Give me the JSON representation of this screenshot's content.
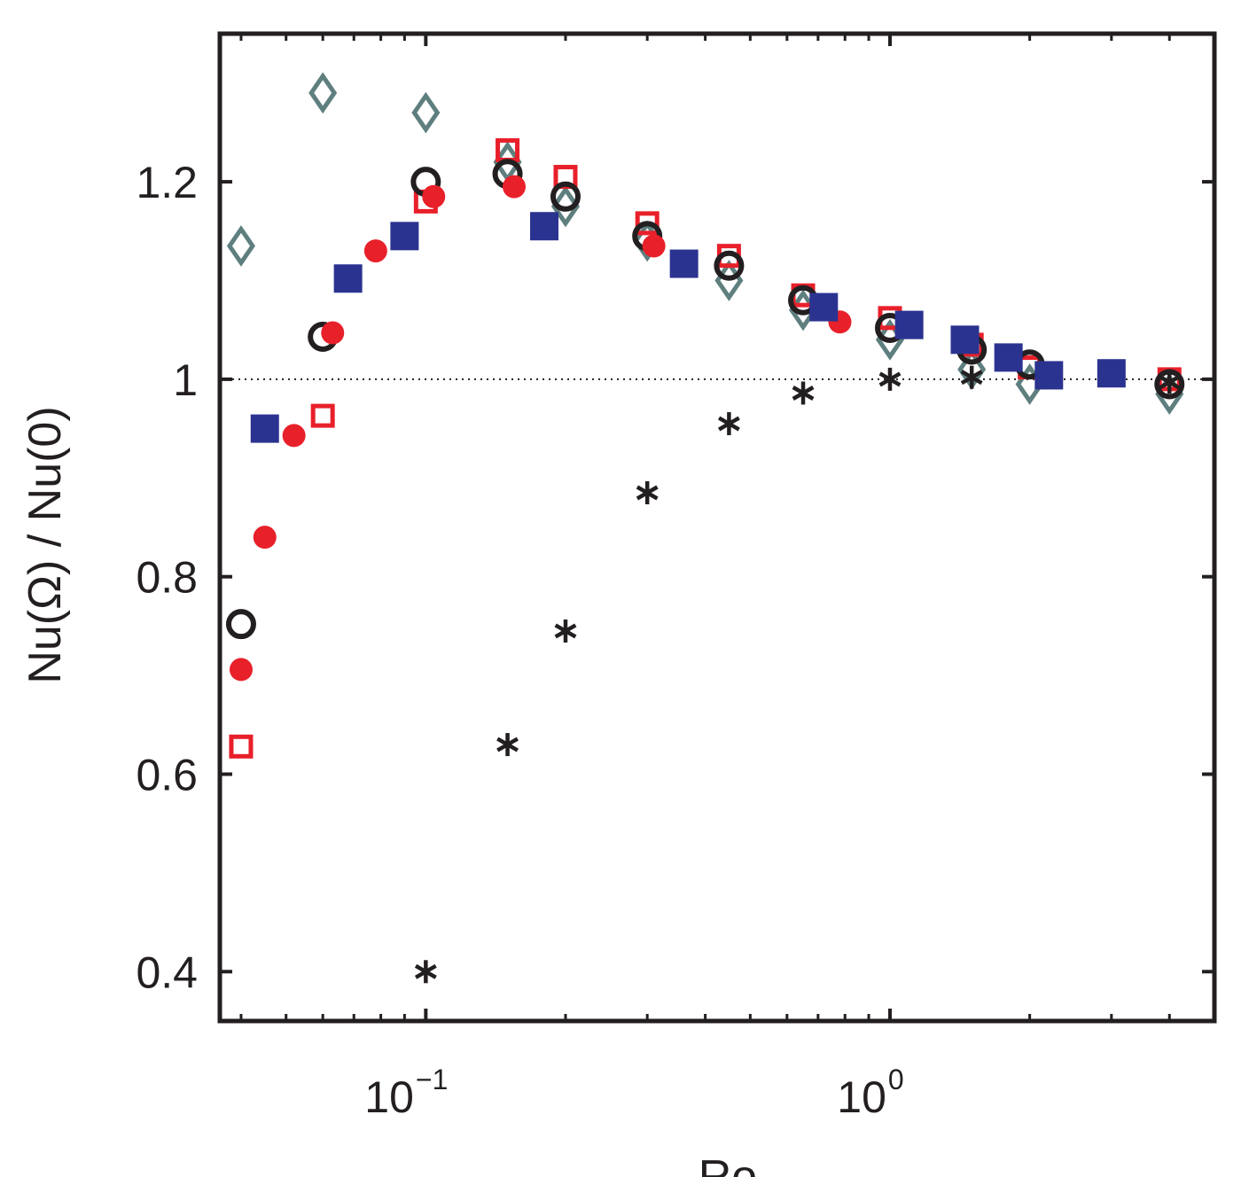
{
  "chart_data": {
    "type": "scatter",
    "xlabel": "Ro",
    "ylabel": "Nu(Ω) / Nu(0)",
    "xscale": "log",
    "xlim": [
      0.036,
      5.0
    ],
    "ylim": [
      0.35,
      1.35
    ],
    "reference_line_y": 1,
    "x_ticks": [
      {
        "value": 0.1,
        "base": "10",
        "exp": "−1"
      },
      {
        "value": 1,
        "base": "10",
        "exp": "0"
      }
    ],
    "y_ticks": [
      {
        "value": 0.4,
        "label": "0.4"
      },
      {
        "value": 0.6,
        "label": "0.6"
      },
      {
        "value": 0.8,
        "label": "0.8"
      },
      {
        "value": 1.0,
        "label": "1"
      },
      {
        "value": 1.2,
        "label": "1.2"
      }
    ],
    "series": [
      {
        "marker": "diamond-open",
        "color": "#5f7f7f",
        "points": [
          [
            0.04,
            1.135
          ],
          [
            0.06,
            1.29
          ],
          [
            0.1,
            1.27
          ],
          [
            0.15,
            1.22
          ],
          [
            0.2,
            1.175
          ],
          [
            0.3,
            1.14
          ],
          [
            0.45,
            1.1
          ],
          [
            0.65,
            1.07
          ],
          [
            1.0,
            1.04
          ],
          [
            1.5,
            1.01
          ],
          [
            2.0,
            0.995
          ],
          [
            4.0,
            0.985
          ]
        ]
      },
      {
        "marker": "square-open",
        "color": "#e8202a",
        "points": [
          [
            0.04,
            0.628
          ],
          [
            0.06,
            0.963
          ],
          [
            0.1,
            1.18
          ],
          [
            0.15,
            1.232
          ],
          [
            0.2,
            1.205
          ],
          [
            0.3,
            1.158
          ],
          [
            0.45,
            1.125
          ],
          [
            0.65,
            1.085
          ],
          [
            1.0,
            1.062
          ],
          [
            1.5,
            1.035
          ],
          [
            2.0,
            1.012
          ],
          [
            4.0,
            1.0
          ]
        ]
      },
      {
        "marker": "circle-open",
        "color": "#231f20",
        "points": [
          [
            0.04,
            0.752
          ],
          [
            0.06,
            1.043
          ],
          [
            0.1,
            1.2
          ],
          [
            0.15,
            1.208
          ],
          [
            0.2,
            1.185
          ],
          [
            0.3,
            1.145
          ],
          [
            0.45,
            1.115
          ],
          [
            0.65,
            1.08
          ],
          [
            1.0,
            1.052
          ],
          [
            1.5,
            1.03
          ],
          [
            2.0,
            1.015
          ],
          [
            4.0,
            0.995
          ]
        ]
      },
      {
        "marker": "circle-filled",
        "color": "#e8202a",
        "points": [
          [
            0.04,
            0.706
          ],
          [
            0.045,
            0.84
          ],
          [
            0.052,
            0.943
          ],
          [
            0.063,
            1.047
          ],
          [
            0.078,
            1.13
          ],
          [
            0.104,
            1.185
          ],
          [
            0.155,
            1.195
          ],
          [
            0.31,
            1.135
          ],
          [
            0.78,
            1.058
          ]
        ]
      },
      {
        "marker": "square-filled",
        "color": "#2b3390",
        "points": [
          [
            0.045,
            0.95
          ],
          [
            0.068,
            1.102
          ],
          [
            0.09,
            1.145
          ],
          [
            0.18,
            1.155
          ],
          [
            0.36,
            1.117
          ],
          [
            0.72,
            1.073
          ],
          [
            1.1,
            1.055
          ],
          [
            1.45,
            1.04
          ],
          [
            1.8,
            1.022
          ],
          [
            2.2,
            1.004
          ],
          [
            3.0,
            1.006
          ]
        ]
      },
      {
        "marker": "asterisk",
        "color": "#231f20",
        "points": [
          [
            0.1,
            0.4
          ],
          [
            0.15,
            0.63
          ],
          [
            0.2,
            0.745
          ],
          [
            0.3,
            0.885
          ],
          [
            0.45,
            0.955
          ],
          [
            0.65,
            0.986
          ],
          [
            1.0,
            1.0
          ],
          [
            1.5,
            1.002
          ],
          [
            4.0,
            0.997
          ]
        ]
      }
    ]
  }
}
